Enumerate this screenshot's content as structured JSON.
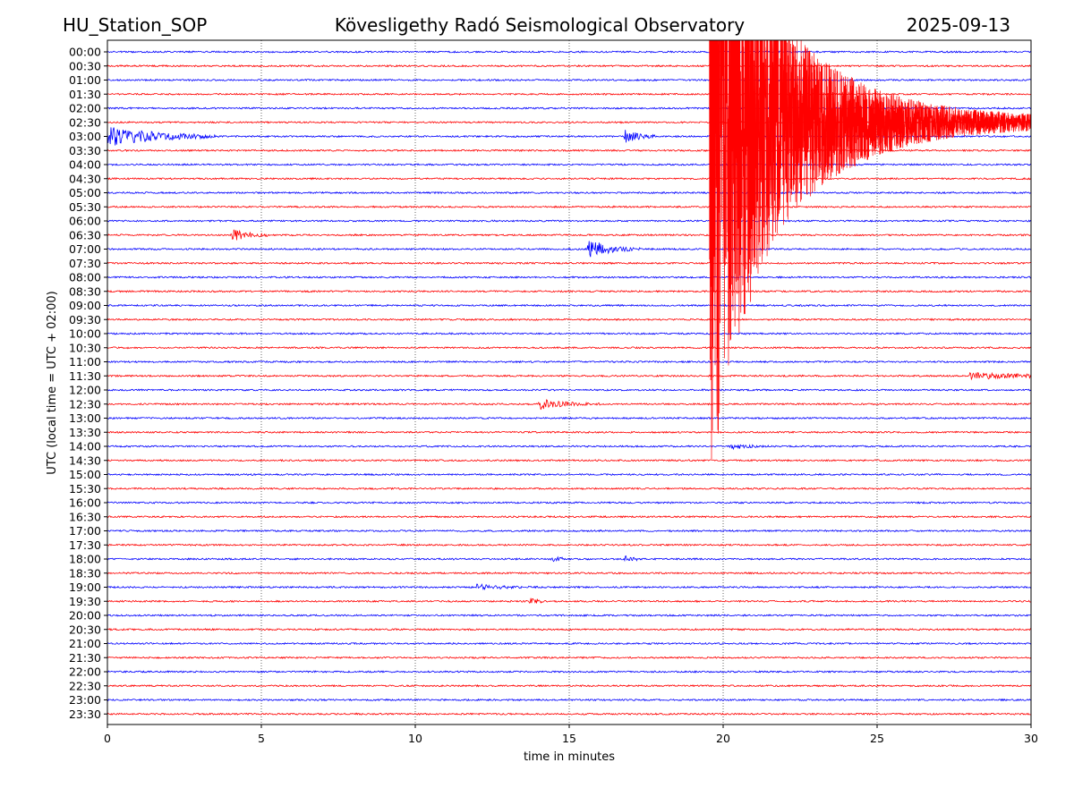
{
  "header": {
    "station": "HU_Station_SOP",
    "observatory": "Kövesligethy Radó Seismological Observatory",
    "date": "2025-09-13"
  },
  "chart_data": {
    "type": "line",
    "subtype": "helicorder",
    "title": "Kövesligethy Radó Seismological Observatory",
    "xlabel": "time in minutes",
    "ylabel": "UTC (local time = UTC + 02:00)",
    "xlim": [
      0,
      30
    ],
    "x_ticks": [
      0,
      5,
      10,
      15,
      20,
      25,
      30
    ],
    "x_tick_labels": [
      "0",
      "5",
      "10",
      "15",
      "20",
      "25",
      "30"
    ],
    "grid": "vertical dotted at x ticks",
    "row_labels": [
      "00:00",
      "00:30",
      "01:00",
      "01:30",
      "02:00",
      "02:30",
      "03:00",
      "03:30",
      "04:00",
      "04:30",
      "05:00",
      "05:30",
      "06:00",
      "06:30",
      "07:00",
      "07:30",
      "08:00",
      "08:30",
      "09:00",
      "09:30",
      "10:00",
      "10:30",
      "11:00",
      "11:30",
      "12:00",
      "12:30",
      "13:00",
      "13:30",
      "14:00",
      "14:30",
      "15:00",
      "15:30",
      "16:00",
      "16:30",
      "17:00",
      "17:30",
      "18:00",
      "18:30",
      "19:00",
      "19:30",
      "20:00",
      "20:30",
      "21:00",
      "21:30",
      "22:00",
      "22:30",
      "23:00",
      "23:30"
    ],
    "row_colors": [
      "#0000ff",
      "#ff0000"
    ],
    "events": [
      {
        "row": "03:00",
        "start_min": 0.0,
        "end_min": 3.5,
        "amp": 2.0,
        "decay": 1.5
      },
      {
        "row": "03:00",
        "start_min": 16.8,
        "end_min": 17.8,
        "amp": 1.2,
        "decay": 0.5
      },
      {
        "row": "06:30",
        "start_min": 4.0,
        "end_min": 5.2,
        "amp": 1.3,
        "decay": 0.5
      },
      {
        "row": "07:00",
        "start_min": 15.6,
        "end_min": 17.3,
        "amp": 2.3,
        "decay": 0.6
      },
      {
        "row": "12:30",
        "start_min": 14.0,
        "end_min": 16.0,
        "amp": 1.0,
        "decay": 0.7
      },
      {
        "row": "18:00",
        "start_min": 14.4,
        "end_min": 14.8,
        "amp": 0.6,
        "decay": 0.3
      },
      {
        "row": "18:00",
        "start_min": 16.8,
        "end_min": 17.2,
        "amp": 0.6,
        "decay": 0.3
      },
      {
        "row": "19:00",
        "start_min": 12.0,
        "end_min": 14.0,
        "amp": 0.5,
        "decay": 0.8
      },
      {
        "row": "19:30",
        "start_min": 13.7,
        "end_min": 14.2,
        "amp": 0.7,
        "decay": 0.3
      },
      {
        "row": "14:00",
        "start_min": 20.2,
        "end_min": 21.5,
        "amp": 0.5,
        "decay": 0.6
      },
      {
        "row": "11:30",
        "start_min": 28.0,
        "end_min": 30.0,
        "amp": 0.6,
        "decay": 2.0
      },
      {
        "row": "02:30",
        "start_min": 19.55,
        "end_min": 30.0,
        "amp": 16.0,
        "decay": 2.5,
        "floor": 0.9,
        "color": "#ff0000",
        "clip_top": true
      }
    ]
  }
}
